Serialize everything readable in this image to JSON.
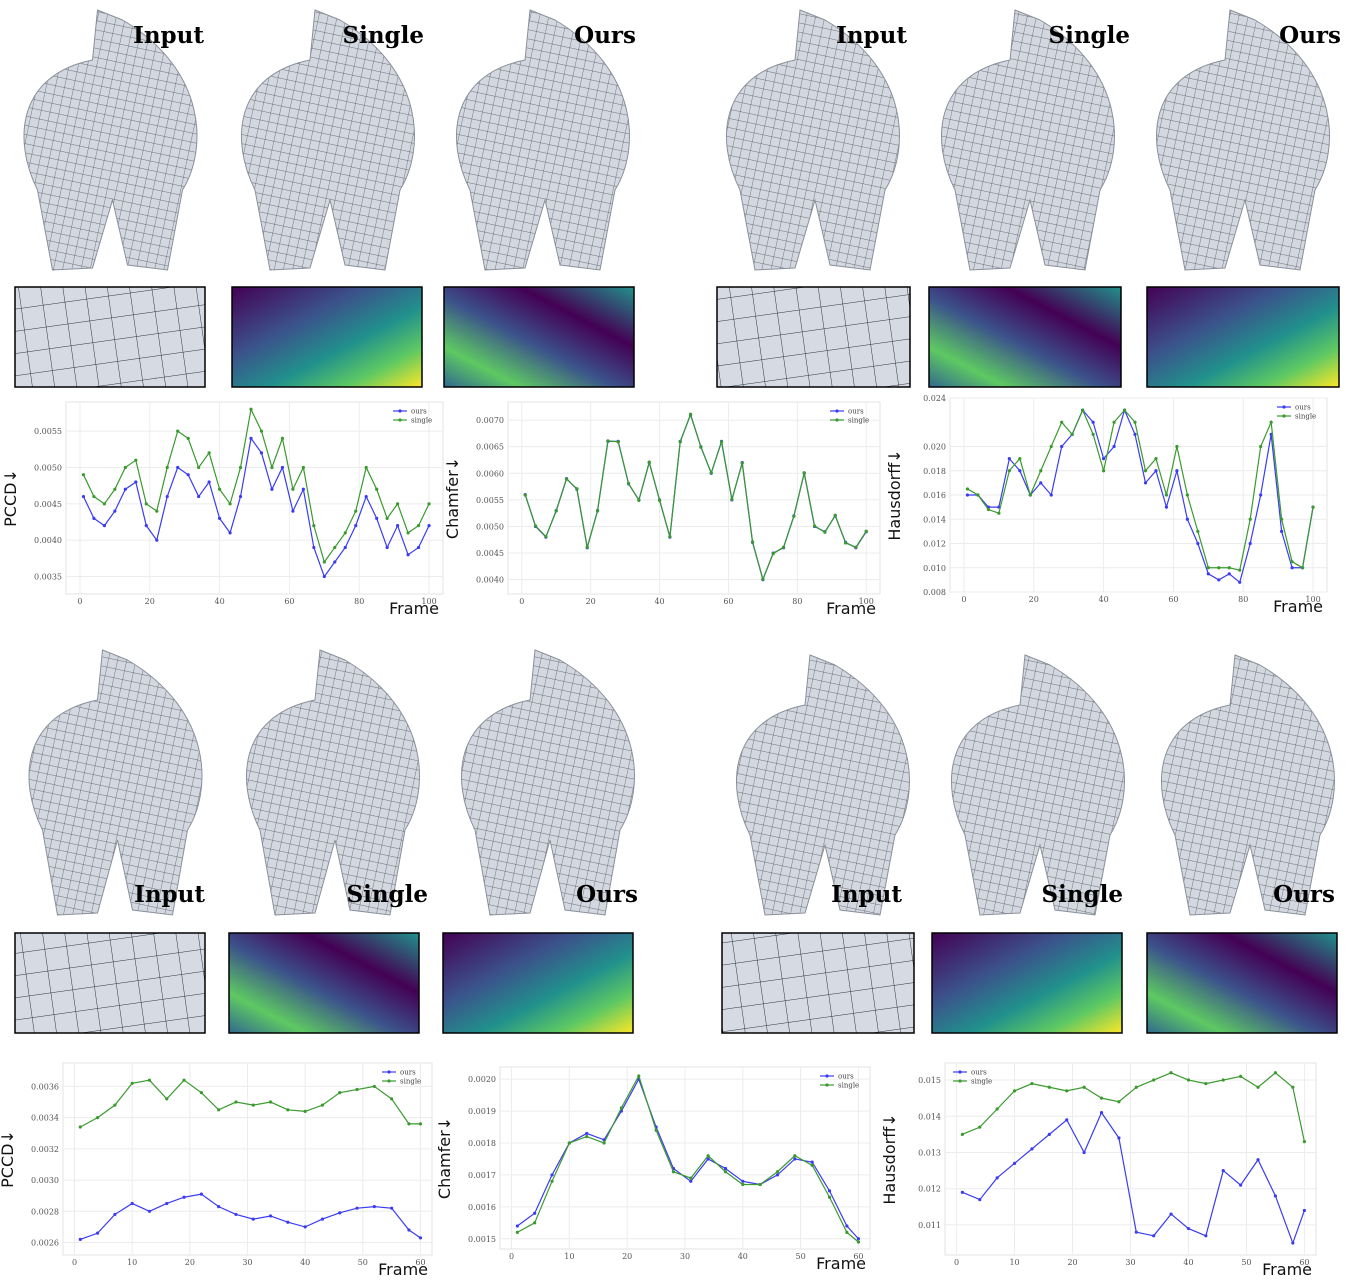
{
  "figure": {
    "groups": [
      {
        "labels": [
          "Input",
          "Single",
          "Ours"
        ]
      },
      {
        "labels": [
          "Input",
          "Single",
          "Ours"
        ]
      },
      {
        "labels": [
          "Input",
          "Single",
          "Ours"
        ]
      },
      {
        "labels": [
          "Input",
          "Single",
          "Ours"
        ]
      }
    ]
  },
  "chart_data": [
    {
      "type": "line",
      "y_label": "PCCD↓",
      "x_label": "Frame",
      "grid": true,
      "legend": "upper right",
      "x": [
        1,
        4,
        7,
        10,
        13,
        16,
        19,
        22,
        25,
        28,
        31,
        34,
        37,
        40,
        43,
        46,
        49,
        52,
        55,
        58,
        61,
        64,
        67,
        70,
        73,
        76,
        79,
        82,
        85,
        88,
        91,
        94,
        97,
        100
      ],
      "xlim": [
        -4,
        104
      ],
      "xticks": [
        0,
        20,
        40,
        60,
        80,
        100
      ],
      "ylim": [
        0.00326,
        0.0059
      ],
      "yticks": [
        0.0035,
        {
          "value": 0.004,
          "label": "0.0040"
        },
        0.0045,
        {
          "value": 0.005,
          "label": "0.0050"
        },
        0.0055
      ],
      "series": [
        {
          "name": "ours",
          "color": "#3b3bf5",
          "values": [
            0.0046,
            0.0043,
            0.0042,
            0.0044,
            0.0047,
            0.0048,
            0.0042,
            0.004,
            0.0046,
            0.005,
            0.0049,
            0.0046,
            0.0048,
            0.0043,
            0.0041,
            0.0046,
            0.0054,
            0.0052,
            0.0047,
            0.005,
            0.0044,
            0.0047,
            0.0039,
            0.0035,
            0.0037,
            0.0039,
            0.0042,
            0.0046,
            0.0043,
            0.0039,
            0.0042,
            0.0038,
            0.0039,
            0.0042
          ]
        },
        {
          "name": "single",
          "color": "#3a9a2e",
          "values": [
            0.0049,
            0.0046,
            0.0045,
            0.0047,
            0.005,
            0.0051,
            0.0045,
            0.0044,
            0.005,
            0.0055,
            0.0054,
            0.005,
            0.0052,
            0.0047,
            0.0045,
            0.005,
            0.0058,
            0.0055,
            0.005,
            0.0054,
            0.0047,
            0.005,
            0.0042,
            0.0037,
            0.0039,
            0.0041,
            0.0044,
            0.005,
            0.0047,
            0.0043,
            0.0045,
            0.0041,
            0.0042,
            0.0045
          ]
        }
      ]
    },
    {
      "type": "line",
      "y_label": "Chamfer↓",
      "x_label": "Frame",
      "grid": true,
      "legend": "upper right",
      "x": [
        1,
        4,
        7,
        10,
        13,
        16,
        19,
        22,
        25,
        28,
        31,
        34,
        37,
        40,
        43,
        46,
        49,
        52,
        55,
        58,
        61,
        64,
        67,
        70,
        73,
        76,
        79,
        82,
        85,
        88,
        91,
        94,
        97,
        100
      ],
      "xlim": [
        -4,
        104
      ],
      "xticks": [
        0,
        20,
        40,
        60,
        80,
        100
      ],
      "ylim": [
        0.00373,
        0.00734
      ],
      "yticks": [
        {
          "value": 0.004,
          "label": "0.0040"
        },
        0.0045,
        {
          "value": 0.005,
          "label": "0.0050"
        },
        0.0055,
        {
          "value": 0.006,
          "label": "0.0060"
        },
        0.0065,
        {
          "value": 0.007,
          "label": "0.0070"
        }
      ],
      "series": [
        {
          "name": "ours",
          "color": "#3b3bf5",
          "values": [
            0.0056,
            0.005,
            0.0048,
            0.0053,
            0.0059,
            0.0057,
            0.0046,
            0.0053,
            0.0066,
            0.0066,
            0.0058,
            0.0055,
            0.0062,
            0.0055,
            0.0048,
            0.0066,
            0.0071,
            0.0065,
            0.006,
            0.0066,
            0.0055,
            0.0062,
            0.0047,
            0.004,
            0.0045,
            0.0046,
            0.0052,
            0.006,
            0.005,
            0.0049,
            0.0052,
            0.0047,
            0.0046,
            0.0049
          ]
        },
        {
          "name": "single",
          "color": "#3a9a2e",
          "values": [
            0.00559,
            0.00501,
            0.00481,
            0.00529,
            0.00589,
            0.00571,
            0.00461,
            0.00529,
            0.00661,
            0.00659,
            0.00581,
            0.00549,
            0.00621,
            0.00549,
            0.00481,
            0.00659,
            0.00711,
            0.00649,
            0.00601,
            0.00659,
            0.00551,
            0.00619,
            0.00471,
            0.00401,
            0.00449,
            0.00461,
            0.00519,
            0.00601,
            0.00501,
            0.00489,
            0.00521,
            0.00469,
            0.00461,
            0.00491
          ]
        }
      ]
    },
    {
      "type": "line",
      "y_label": "Hausdorff↓",
      "x_label": "Frame",
      "grid": true,
      "legend": "upper right",
      "x": [
        1,
        4,
        7,
        10,
        13,
        16,
        19,
        22,
        25,
        28,
        31,
        34,
        37,
        40,
        43,
        46,
        49,
        52,
        55,
        58,
        61,
        64,
        67,
        70,
        73,
        76,
        79,
        82,
        85,
        88,
        91,
        94,
        97,
        100
      ],
      "xlim": [
        -4,
        104
      ],
      "xticks": [
        0,
        20,
        40,
        60,
        80,
        100
      ],
      "ylim": [
        0.008,
        0.024
      ],
      "yticks": [
        0.008,
        {
          "value": 0.01,
          "label": "0.010"
        },
        0.012,
        0.014,
        0.016,
        0.018,
        {
          "value": 0.02,
          "label": "0.020"
        },
        0.024
      ],
      "series": [
        {
          "name": "ours",
          "color": "#3b3bf5",
          "values": [
            0.016,
            0.016,
            0.015,
            0.015,
            0.019,
            0.018,
            0.016,
            0.017,
            0.016,
            0.02,
            0.021,
            0.023,
            0.022,
            0.019,
            0.02,
            0.023,
            0.021,
            0.017,
            0.018,
            0.015,
            0.018,
            0.014,
            0.012,
            0.0095,
            0.009,
            0.0095,
            0.0088,
            0.012,
            0.016,
            0.021,
            0.013,
            0.01,
            0.01,
            0.015
          ]
        },
        {
          "name": "single",
          "color": "#3a9a2e",
          "values": [
            0.0165,
            0.016,
            0.0148,
            0.0145,
            0.018,
            0.019,
            0.016,
            0.018,
            0.02,
            0.022,
            0.021,
            0.023,
            0.021,
            0.018,
            0.022,
            0.023,
            0.022,
            0.018,
            0.019,
            0.016,
            0.02,
            0.016,
            0.013,
            0.01,
            0.01,
            0.01,
            0.0098,
            0.014,
            0.02,
            0.022,
            0.014,
            0.0105,
            0.01,
            0.015
          ]
        }
      ]
    },
    {
      "type": "line",
      "y_label": "PCCD↓",
      "x_label": "Frame",
      "grid": true,
      "legend": "upper right",
      "x": [
        1,
        4,
        7,
        10,
        13,
        16,
        19,
        22,
        25,
        28,
        31,
        34,
        37,
        40,
        43,
        46,
        49,
        52,
        55,
        58,
        60
      ],
      "xlim": [
        -2,
        62
      ],
      "xticks": [
        0,
        10,
        20,
        30,
        40,
        50,
        60
      ],
      "ylim": [
        0.00252,
        0.00375
      ],
      "yticks": [
        0.0026,
        0.0028,
        {
          "value": 0.003,
          "label": "0.0030"
        },
        0.0032,
        0.0034,
        0.0036
      ],
      "series": [
        {
          "name": "ours",
          "color": "#3b3bf5",
          "values": [
            0.00262,
            0.00266,
            0.00278,
            0.00285,
            0.0028,
            0.00285,
            0.00289,
            0.00291,
            0.00283,
            0.00278,
            0.00275,
            0.00277,
            0.00273,
            0.0027,
            0.00275,
            0.00279,
            0.00282,
            0.00283,
            0.00282,
            0.00268,
            0.00263
          ]
        },
        {
          "name": "single",
          "color": "#3a9a2e",
          "values": [
            0.00334,
            0.0034,
            0.00348,
            0.00362,
            0.00364,
            0.00352,
            0.00364,
            0.00356,
            0.00345,
            0.0035,
            0.00348,
            0.0035,
            0.00345,
            0.00344,
            0.00348,
            0.00356,
            0.00358,
            0.0036,
            0.00352,
            0.00336,
            0.00336
          ]
        }
      ]
    },
    {
      "type": "line",
      "y_label": "Chamfer↓",
      "x_label": "Frame",
      "grid": true,
      "legend": "upper right",
      "x": [
        1,
        4,
        7,
        10,
        13,
        16,
        19,
        22,
        25,
        28,
        31,
        34,
        37,
        40,
        43,
        46,
        49,
        52,
        55,
        58,
        60
      ],
      "xlim": [
        -2,
        62
      ],
      "xticks": [
        0,
        10,
        20,
        30,
        40,
        50,
        60
      ],
      "ylim": [
        0.001468,
        0.002038
      ],
      "yticks": [
        0.0015,
        0.0016,
        0.0017,
        0.0018,
        0.0019,
        {
          "value": 0.002,
          "label": "0.0020"
        }
      ],
      "series": [
        {
          "name": "ours",
          "color": "#3b3bf5",
          "values": [
            0.00154,
            0.00158,
            0.0017,
            0.0018,
            0.00183,
            0.00181,
            0.0019,
            0.002,
            0.00185,
            0.00172,
            0.00168,
            0.00175,
            0.00172,
            0.00168,
            0.00167,
            0.0017,
            0.00175,
            0.00174,
            0.00165,
            0.00154,
            0.0015
          ]
        },
        {
          "name": "single",
          "color": "#3a9a2e",
          "values": [
            0.00152,
            0.00155,
            0.00168,
            0.0018,
            0.00182,
            0.0018,
            0.00191,
            0.00201,
            0.00184,
            0.00171,
            0.00169,
            0.00176,
            0.00171,
            0.00167,
            0.00167,
            0.00171,
            0.00176,
            0.00173,
            0.00163,
            0.00152,
            0.00149
          ]
        }
      ]
    },
    {
      "type": "line",
      "y_label": "Hausdorff↓",
      "x_label": "Frame",
      "grid": true,
      "legend": "upper left",
      "x": [
        1,
        4,
        7,
        10,
        13,
        16,
        19,
        22,
        25,
        28,
        31,
        34,
        37,
        40,
        43,
        46,
        49,
        52,
        55,
        58,
        60
      ],
      "xlim": [
        -2,
        62
      ],
      "xticks": [
        0,
        10,
        20,
        30,
        40,
        50,
        60
      ],
      "ylim": [
        0.01017,
        0.01547
      ],
      "yticks": [
        0.011,
        0.012,
        0.013,
        0.014,
        0.015
      ],
      "series": [
        {
          "name": "ours",
          "color": "#3b3bf5",
          "values": [
            0.0119,
            0.0117,
            0.0123,
            0.0127,
            0.0131,
            0.0135,
            0.0139,
            0.013,
            0.0141,
            0.0134,
            0.0108,
            0.0107,
            0.0113,
            0.0109,
            0.0107,
            0.0125,
            0.0121,
            0.0128,
            0.0118,
            0.0105,
            0.0114
          ]
        },
        {
          "name": "single",
          "color": "#3a9a2e",
          "values": [
            0.0135,
            0.0137,
            0.0142,
            0.0147,
            0.0149,
            0.0148,
            0.0147,
            0.0148,
            0.0145,
            0.0144,
            0.0148,
            0.015,
            0.0152,
            0.015,
            0.0149,
            0.015,
            0.0151,
            0.0148,
            0.0152,
            0.0148,
            0.0133
          ]
        }
      ]
    }
  ]
}
